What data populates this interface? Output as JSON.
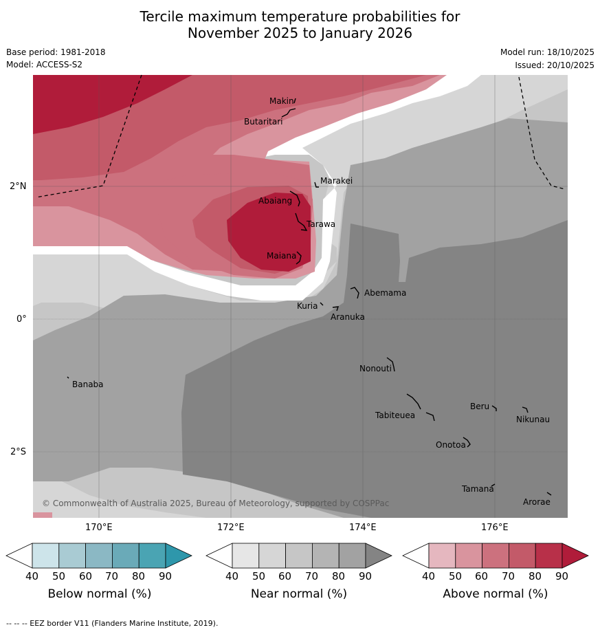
{
  "title_line1": "Tercile maximum temperature probabilities for",
  "title_line2": "November 2025 to January 2026",
  "base_period": "Base period: 1981-2018",
  "model": "Model: ACCESS-S2",
  "model_run": "Model run: 18/10/2025",
  "issued": "Issued: 20/10/2025",
  "copyright": "© Commonwealth of Australia 2025, Bureau of Meteorology, supported by COSPPac",
  "lat_ticks": [
    "2°N",
    "0°",
    "2°S"
  ],
  "lon_ticks": [
    "170°E",
    "172°E",
    "174°E",
    "176°E"
  ],
  "islands": {
    "makin": "Makin",
    "butaritari": "Butaritari",
    "marakei": "Marakei",
    "abaiang": "Abaiang",
    "tarawa": "Tarawa",
    "maiana": "Maiana",
    "abemama": "Abemama",
    "kuria": "Kuria",
    "aranuka": "Aranuka",
    "banaba": "Banaba",
    "nonouti": "Nonouti",
    "beru": "Beru",
    "nikunau": "Nikunau",
    "tabiteuea": "Tabiteuea",
    "onotoa": "Onotoa",
    "tamana": "Tamana",
    "arorae": "Arorae"
  },
  "colorbars": {
    "below": {
      "label": "Below normal (%)",
      "ticks": [
        "40",
        "50",
        "60",
        "70",
        "80",
        "90"
      ],
      "colors": [
        "#ffffff",
        "#cde4ea",
        "#a9cbd3",
        "#8bb8c4",
        "#6aaab8",
        "#4aa4b3",
        "#2e97ab"
      ]
    },
    "near": {
      "label": "Near normal (%)",
      "ticks": [
        "40",
        "50",
        "60",
        "70",
        "80",
        "90"
      ],
      "colors": [
        "#ffffff",
        "#e6e6e6",
        "#d6d6d6",
        "#c6c6c6",
        "#b4b4b4",
        "#a2a2a2",
        "#848484"
      ]
    },
    "above": {
      "label": "Above normal (%)",
      "ticks": [
        "40",
        "50",
        "60",
        "70",
        "80",
        "90"
      ],
      "colors": [
        "#ffffff",
        "#e5b7bf",
        "#d9949e",
        "#cc717e",
        "#c35a69",
        "#b83049",
        "#b01c3a"
      ]
    }
  },
  "footer": "--  --  -- EEZ border V11 (Flanders Marine Institute, 2019)."
}
